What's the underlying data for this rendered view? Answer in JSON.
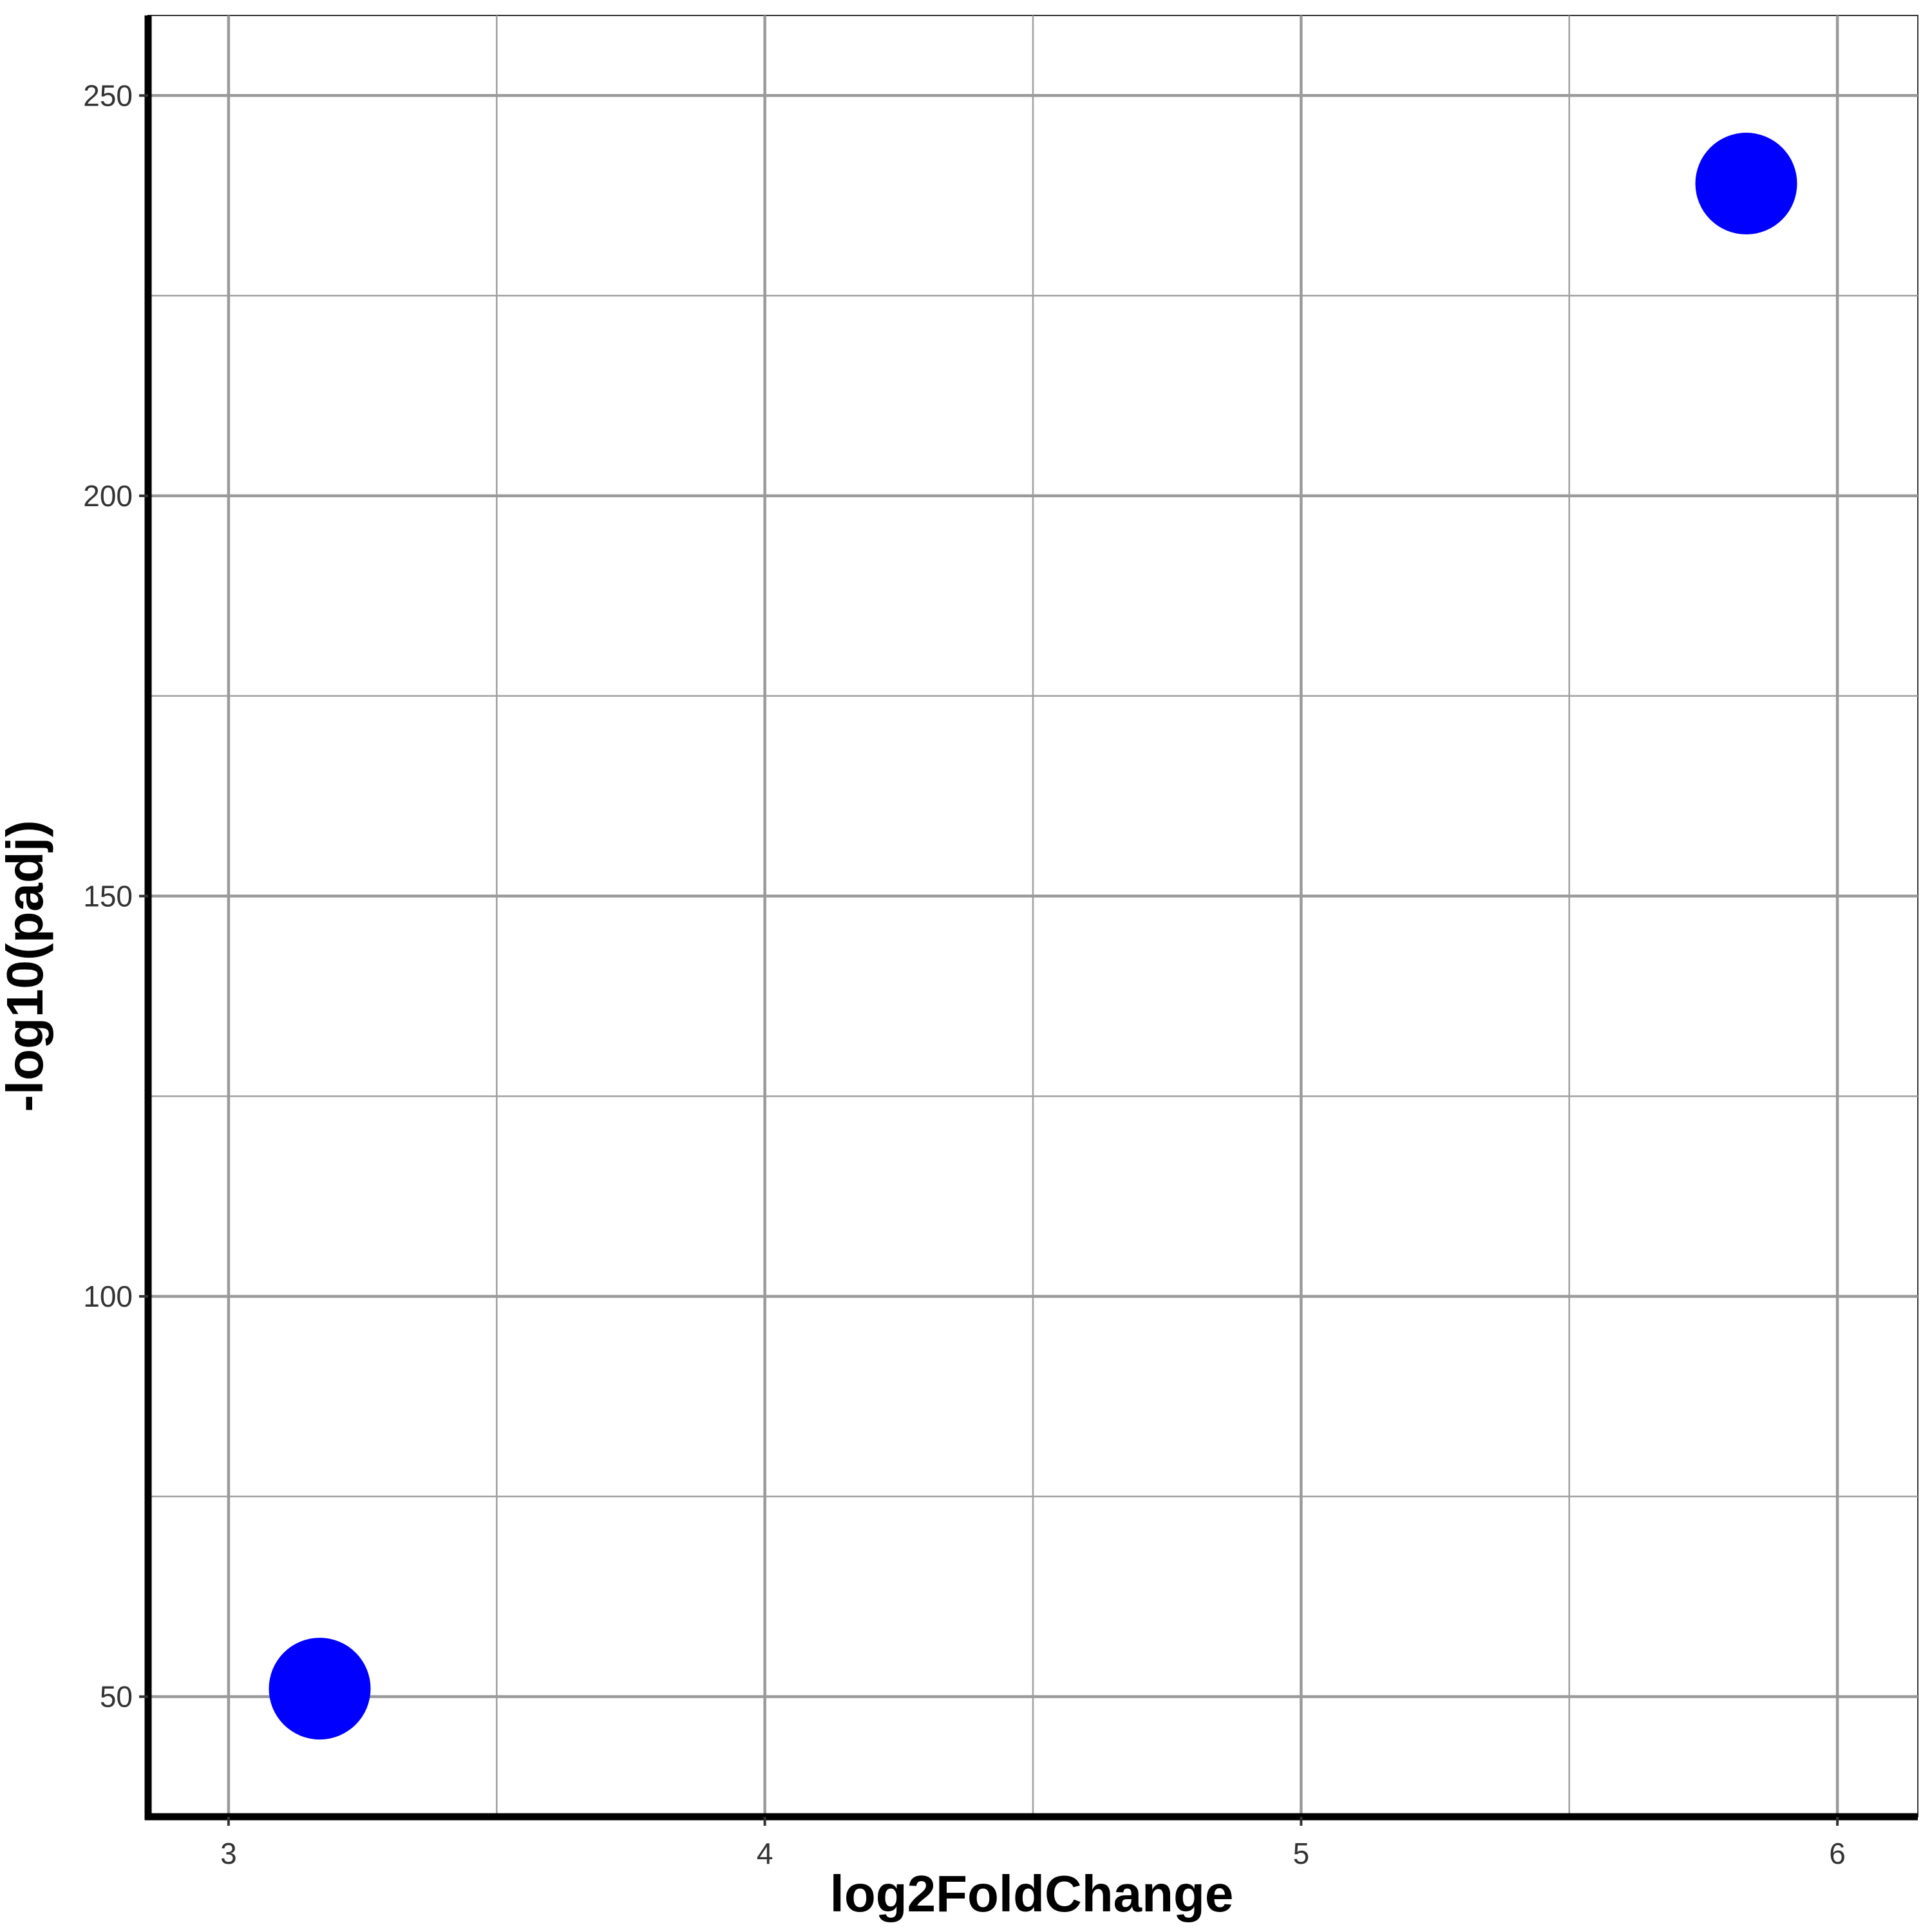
{
  "chart_data": {
    "type": "scatter",
    "title": "",
    "xlabel": "log2FoldChange",
    "ylabel": "-log10(padj)",
    "xlim": [
      2.85,
      6.15
    ],
    "ylim": [
      35,
      260
    ],
    "x_ticks": [
      3,
      4,
      5,
      6
    ],
    "x_tick_labels": [
      "3",
      "4",
      "5",
      "6"
    ],
    "y_ticks": [
      50,
      100,
      150,
      200,
      250
    ],
    "y_tick_labels": [
      "50",
      "100",
      "150",
      "200",
      "250"
    ],
    "x_minor_grid": [
      3.5,
      4.5,
      5.5
    ],
    "y_minor_grid": [
      75,
      125,
      175,
      225
    ],
    "grid": true,
    "legend": "none",
    "point_color": "#0000ff",
    "points": [
      {
        "x": 3.17,
        "y": 51
      },
      {
        "x": 5.83,
        "y": 239
      }
    ]
  }
}
